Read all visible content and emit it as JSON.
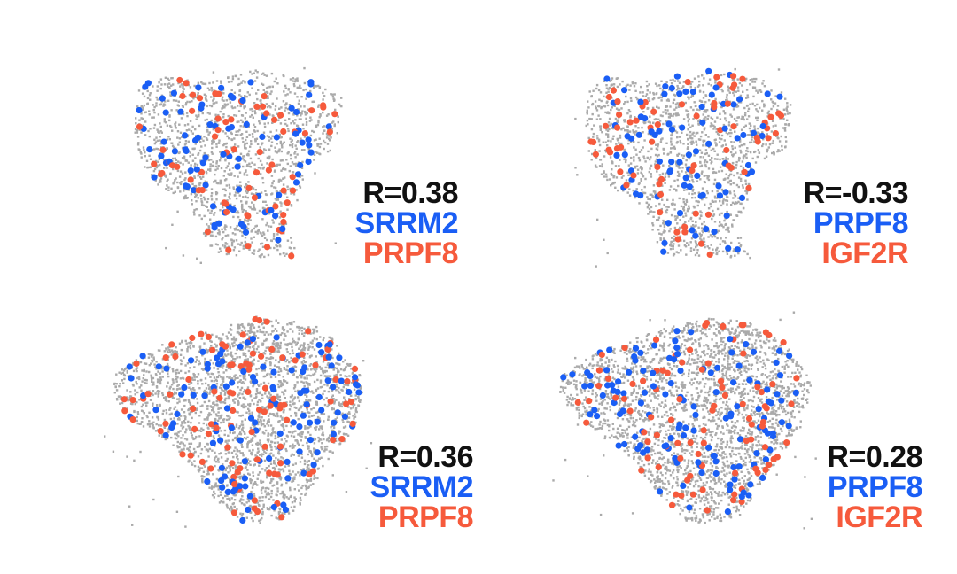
{
  "colors": {
    "background": "#aaaaaa",
    "gene_a": "#1a5ef5",
    "gene_b": "#f65a3c",
    "r_text": "#111111"
  },
  "chart_data": [
    {
      "type": "scatter",
      "r_label": "R=0.38",
      "gene_a": "SRRM2",
      "gene_b": "PRPF8",
      "shape": "tissue-a"
    },
    {
      "type": "scatter",
      "r_label": "R=-0.33",
      "gene_a": "PRPF8",
      "gene_b": "IGF2R",
      "shape": "tissue-a"
    },
    {
      "type": "scatter",
      "r_label": "R=0.36",
      "gene_a": "SRRM2",
      "gene_b": "PRPF8",
      "shape": "tissue-b"
    },
    {
      "type": "scatter",
      "r_label": "R=0.28",
      "gene_a": "PRPF8",
      "gene_b": "IGF2R",
      "shape": "tissue-b"
    }
  ]
}
